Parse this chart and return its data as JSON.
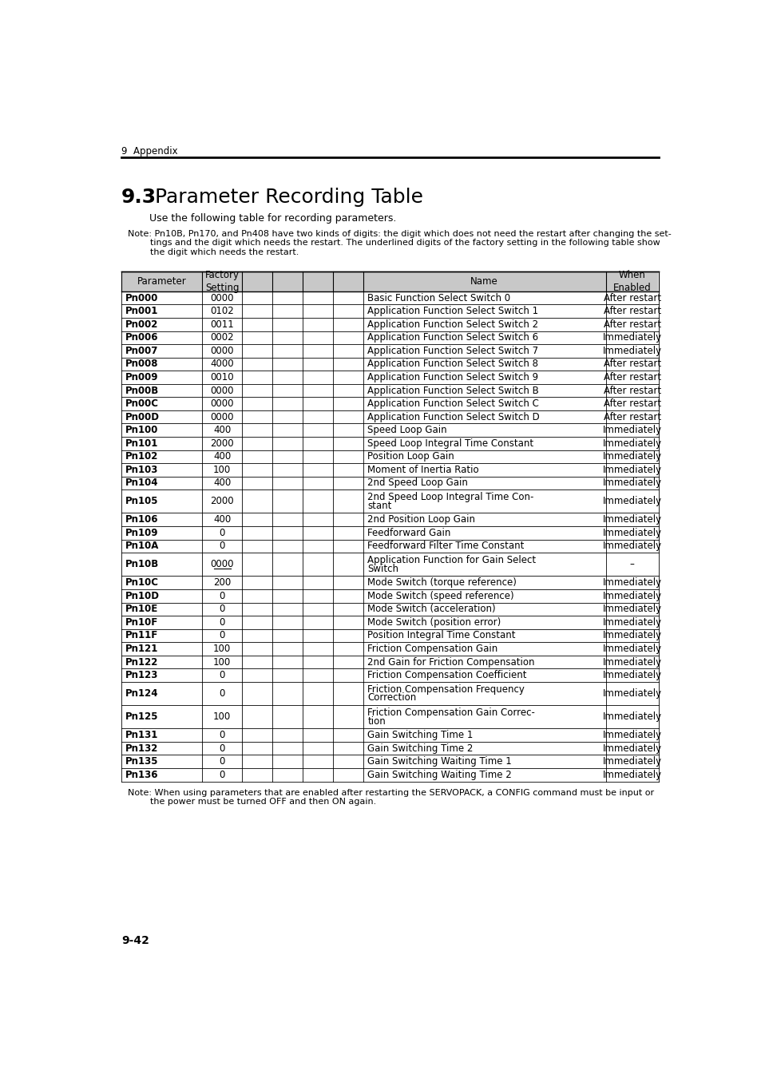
{
  "title_section": "9.3",
  "title_text": "Parameter Recording Table",
  "header_text": "9  Appendix",
  "subtitle": "Use the following table for recording parameters.",
  "note1_lines": [
    "Note: Pn10B, Pn170, and Pn408 have two kinds of digits: the digit which does not need the restart after changing the set-",
    "        tings and the digit which needs the restart. The underlined digits of the factory setting in the following table show",
    "        the digit which needs the restart."
  ],
  "footer_lines": [
    "Note: When using parameters that are enabled after restarting the SERVOPACK, a CONFIG command must be input or",
    "        the power must be turned OFF and then ON again."
  ],
  "page_number": "9-42",
  "rows": [
    {
      "param": "Pn000",
      "factory": "0000",
      "name": "Basic Function Select Switch 0",
      "when": "After restart",
      "underline_factory": false,
      "tall": false
    },
    {
      "param": "Pn001",
      "factory": "0102",
      "name": "Application Function Select Switch 1",
      "when": "After restart",
      "underline_factory": false,
      "tall": false
    },
    {
      "param": "Pn002",
      "factory": "0011",
      "name": "Application Function Select Switch 2",
      "when": "After restart",
      "underline_factory": false,
      "tall": false
    },
    {
      "param": "Pn006",
      "factory": "0002",
      "name": "Application Function Select Switch 6",
      "when": "Immediately",
      "underline_factory": false,
      "tall": false
    },
    {
      "param": "Pn007",
      "factory": "0000",
      "name": "Application Function Select Switch 7",
      "when": "Immediately",
      "underline_factory": false,
      "tall": false
    },
    {
      "param": "Pn008",
      "factory": "4000",
      "name": "Application Function Select Switch 8",
      "when": "After restart",
      "underline_factory": false,
      "tall": false
    },
    {
      "param": "Pn009",
      "factory": "0010",
      "name": "Application Function Select Switch 9",
      "when": "After restart",
      "underline_factory": false,
      "tall": false
    },
    {
      "param": "Pn00B",
      "factory": "0000",
      "name": "Application Function Select Switch B",
      "when": "After restart",
      "underline_factory": false,
      "tall": false
    },
    {
      "param": "Pn00C",
      "factory": "0000",
      "name": "Application Function Select Switch C",
      "when": "After restart",
      "underline_factory": false,
      "tall": false
    },
    {
      "param": "Pn00D",
      "factory": "0000",
      "name": "Application Function Select Switch D",
      "when": "After restart",
      "underline_factory": false,
      "tall": false
    },
    {
      "param": "Pn100",
      "factory": "400",
      "name": "Speed Loop Gain",
      "when": "Immediately",
      "underline_factory": false,
      "tall": false
    },
    {
      "param": "Pn101",
      "factory": "2000",
      "name": "Speed Loop Integral Time Constant",
      "when": "Immediately",
      "underline_factory": false,
      "tall": false
    },
    {
      "param": "Pn102",
      "factory": "400",
      "name": "Position Loop Gain",
      "when": "Immediately",
      "underline_factory": false,
      "tall": false
    },
    {
      "param": "Pn103",
      "factory": "100",
      "name": "Moment of Inertia Ratio",
      "when": "Immediately",
      "underline_factory": false,
      "tall": false
    },
    {
      "param": "Pn104",
      "factory": "400",
      "name": "2nd Speed Loop Gain",
      "when": "Immediately",
      "underline_factory": false,
      "tall": false
    },
    {
      "param": "Pn105",
      "factory": "2000",
      "name": "2nd Speed Loop Integral Time Con-\nstant",
      "when": "Immediately",
      "underline_factory": false,
      "tall": true
    },
    {
      "param": "Pn106",
      "factory": "400",
      "name": "2nd Position Loop Gain",
      "when": "Immediately",
      "underline_factory": false,
      "tall": false
    },
    {
      "param": "Pn109",
      "factory": "0",
      "name": "Feedforward Gain",
      "when": "Immediately",
      "underline_factory": false,
      "tall": false
    },
    {
      "param": "Pn10A",
      "factory": "0",
      "name": "Feedforward Filter Time Constant",
      "when": "Immediately",
      "underline_factory": false,
      "tall": false
    },
    {
      "param": "Pn10B",
      "factory": "0000",
      "name": "Application Function for Gain Select\nSwitch",
      "when": "–",
      "underline_factory": true,
      "tall": true
    },
    {
      "param": "Pn10C",
      "factory": "200",
      "name": "Mode Switch (torque reference)",
      "when": "Immediately",
      "underline_factory": false,
      "tall": false
    },
    {
      "param": "Pn10D",
      "factory": "0",
      "name": "Mode Switch (speed reference)",
      "when": "Immediately",
      "underline_factory": false,
      "tall": false
    },
    {
      "param": "Pn10E",
      "factory": "0",
      "name": "Mode Switch (acceleration)",
      "when": "Immediately",
      "underline_factory": false,
      "tall": false
    },
    {
      "param": "Pn10F",
      "factory": "0",
      "name": "Mode Switch (position error)",
      "when": "Immediately",
      "underline_factory": false,
      "tall": false
    },
    {
      "param": "Pn11F",
      "factory": "0",
      "name": "Position Integral Time Constant",
      "when": "Immediately",
      "underline_factory": false,
      "tall": false
    },
    {
      "param": "Pn121",
      "factory": "100",
      "name": "Friction Compensation Gain",
      "when": "Immediately",
      "underline_factory": false,
      "tall": false
    },
    {
      "param": "Pn122",
      "factory": "100",
      "name": "2nd Gain for Friction Compensation",
      "when": "Immediately",
      "underline_factory": false,
      "tall": false
    },
    {
      "param": "Pn123",
      "factory": "0",
      "name": "Friction Compensation Coefficient",
      "when": "Immediately",
      "underline_factory": false,
      "tall": false
    },
    {
      "param": "Pn124",
      "factory": "0",
      "name": "Friction Compensation Frequency\nCorrection",
      "when": "Immediately",
      "underline_factory": false,
      "tall": true
    },
    {
      "param": "Pn125",
      "factory": "100",
      "name": "Friction Compensation Gain Correc-\ntion",
      "when": "Immediately",
      "underline_factory": false,
      "tall": true
    },
    {
      "param": "Pn131",
      "factory": "0",
      "name": "Gain Switching Time 1",
      "when": "Immediately",
      "underline_factory": false,
      "tall": false
    },
    {
      "param": "Pn132",
      "factory": "0",
      "name": "Gain Switching Time 2",
      "when": "Immediately",
      "underline_factory": false,
      "tall": false
    },
    {
      "param": "Pn135",
      "factory": "0",
      "name": "Gain Switching Waiting Time 1",
      "when": "Immediately",
      "underline_factory": false,
      "tall": false
    },
    {
      "param": "Pn136",
      "factory": "0",
      "name": "Gain Switching Waiting Time 2",
      "when": "Immediately",
      "underline_factory": false,
      "tall": false
    }
  ]
}
